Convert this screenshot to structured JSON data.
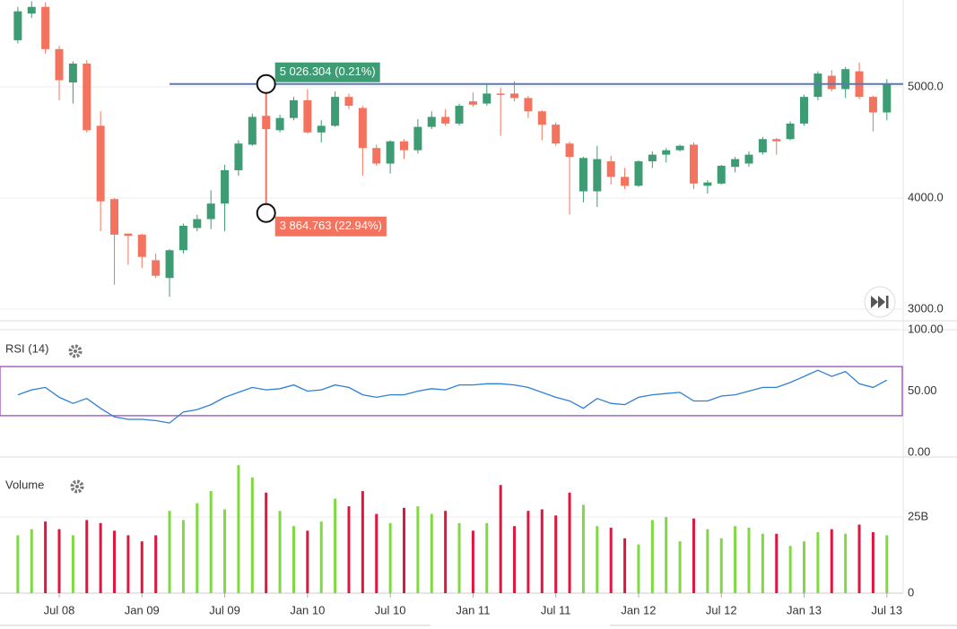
{
  "chart_data": [
    {
      "type": "candlestick",
      "categories": [
        null,
        null,
        null,
        "Jul 08",
        null,
        null,
        null,
        null,
        null,
        "Jan 09",
        null,
        null,
        null,
        null,
        null,
        "Jul 09",
        null,
        null,
        null,
        null,
        null,
        "Jan 10",
        null,
        null,
        null,
        null,
        null,
        "Jul 10",
        null,
        null,
        null,
        null,
        null,
        "Jan 11",
        null,
        null,
        null,
        null,
        null,
        "Jul 11",
        null,
        null,
        null,
        null,
        null,
        "Jan 12",
        null,
        null,
        null,
        null,
        null,
        "Jul 12",
        null,
        null,
        null,
        null,
        null,
        "Jan 13",
        null,
        null,
        null,
        null,
        null,
        "Jul 13"
      ],
      "open": [
        5420,
        5660,
        5720,
        5340,
        5040,
        5210,
        4650,
        3990,
        3680,
        3670,
        3440,
        3280,
        3530,
        3730,
        3810,
        3950,
        4250,
        4480,
        4740,
        4610,
        4720,
        4880,
        4590,
        4650,
        4910,
        4810,
        4450,
        4310,
        4510,
        4430,
        4640,
        4730,
        4670,
        4870,
        4850,
        4940,
        4940,
        4900,
        4780,
        4660,
        4490,
        4060,
        4060,
        4330,
        4190,
        4110,
        4330,
        4390,
        4430,
        4480,
        4110,
        4130,
        4280,
        4310,
        4410,
        4530,
        4530,
        4670,
        4910,
        5100,
        4980,
        5140,
        4910,
        4770
      ],
      "high": [
        5720,
        5770,
        5760,
        5370,
        5230,
        5240,
        4780,
        4000,
        3680,
        3680,
        3500,
        3540,
        3770,
        3850,
        4070,
        4300,
        4520,
        4760,
        4850,
        4750,
        4910,
        4980,
        4700,
        4960,
        4940,
        4830,
        4480,
        4520,
        4530,
        4710,
        4780,
        4800,
        4850,
        4950,
        5030,
        4990,
        5050,
        4920,
        4790,
        4680,
        4510,
        4370,
        4470,
        4380,
        4270,
        4340,
        4420,
        4450,
        4480,
        4500,
        4160,
        4300,
        4370,
        4420,
        4550,
        4540,
        4690,
        4930,
        5140,
        5150,
        5180,
        5220,
        4920,
        5070
      ],
      "low": [
        5390,
        5620,
        5300,
        4880,
        4850,
        4590,
        3700,
        3220,
        3400,
        3370,
        3280,
        3110,
        3500,
        3700,
        3720,
        3700,
        4200,
        4470,
        4500,
        4590,
        4700,
        4580,
        4500,
        4640,
        4800,
        4200,
        4290,
        4220,
        4350,
        4400,
        4620,
        4650,
        4650,
        4820,
        4830,
        4560,
        4870,
        4720,
        4520,
        4470,
        3850,
        3960,
        3920,
        4120,
        4080,
        4100,
        4270,
        4320,
        4420,
        4080,
        4040,
        4120,
        4230,
        4280,
        4390,
        4390,
        4520,
        4650,
        4880,
        4960,
        4900,
        4890,
        4600,
        4700
      ],
      "close": [
        5680,
        5720,
        5340,
        5060,
        5210,
        4610,
        3970,
        3670,
        3660,
        3470,
        3300,
        3530,
        3750,
        3810,
        3950,
        4250,
        4490,
        4730,
        4620,
        4720,
        4880,
        4590,
        4650,
        4910,
        4830,
        4450,
        4310,
        4510,
        4430,
        4640,
        4730,
        4670,
        4830,
        4840,
        4940,
        4930,
        4900,
        4780,
        4660,
        4490,
        4370,
        4360,
        4350,
        4190,
        4110,
        4330,
        4390,
        4430,
        4470,
        4130,
        4140,
        4290,
        4350,
        4390,
        4530,
        4510,
        4670,
        4910,
        5120,
        4980,
        5160,
        4910,
        4770,
        5030
      ],
      "up_color": "#3d9c73",
      "down_color": "#f4735e",
      "ylim": [
        2895,
        5782
      ],
      "yticks": [
        {
          "value": 3000,
          "label": "3000.0"
        },
        {
          "value": 4000,
          "label": "4000.0"
        },
        {
          "value": 5000,
          "label": "5000.0"
        }
      ],
      "grid": true,
      "annotations": {
        "level": {
          "value": 5026.304,
          "label": "5 026.304 (0.21%)",
          "color": "#5b79b5"
        },
        "measure_low": {
          "value": 3864.763,
          "label": "3 864.763 (22.94%)"
        }
      }
    },
    {
      "type": "line",
      "title": "RSI (14)",
      "values": [
        47,
        51,
        53,
        45,
        40,
        44,
        36,
        29,
        27,
        27,
        26,
        24,
        33,
        35,
        39,
        45,
        49,
        53,
        51,
        52,
        55,
        50,
        51,
        55,
        53,
        47,
        45,
        47,
        47,
        50,
        52,
        51,
        55,
        55,
        56,
        56,
        55,
        53,
        49,
        45,
        42,
        36,
        44,
        40,
        39,
        45,
        47,
        48,
        49,
        42,
        42,
        46,
        47,
        50,
        53,
        53,
        57,
        62,
        67,
        62,
        66,
        56,
        53,
        59
      ],
      "color": "#2e7fd6",
      "ylim": [
        0,
        100
      ],
      "yticks": [
        {
          "value": 0,
          "label": "0.00"
        },
        {
          "value": 50,
          "label": "50.00"
        },
        {
          "value": 100,
          "label": "100.00"
        }
      ],
      "bands": [
        30,
        70
      ],
      "band_color": "#9c4bbd"
    },
    {
      "type": "bar",
      "title": "Volume",
      "values": [
        19,
        21,
        23.5,
        21,
        19,
        24,
        23,
        20.5,
        19,
        17,
        19,
        27,
        24,
        29.5,
        33.5,
        27.5,
        42,
        38,
        33,
        27,
        22,
        20.5,
        23.5,
        31,
        28.5,
        33.5,
        26,
        23,
        28,
        28.5,
        26,
        27,
        23,
        20.5,
        23,
        35.5,
        22,
        27,
        27.5,
        25.5,
        33,
        29,
        22,
        21.5,
        18,
        16,
        24,
        25,
        17,
        24.5,
        21,
        18,
        22,
        21.5,
        19.5,
        19.5,
        15.5,
        17,
        20,
        21,
        19.5,
        22.5,
        20,
        19
      ],
      "up_color": "#80d843",
      "down_color": "#e0163f",
      "ylim": [
        0,
        44.7
      ],
      "yticks": [
        0,
        {
          "value": 25,
          "label": "25B"
        }
      ]
    }
  ]
}
